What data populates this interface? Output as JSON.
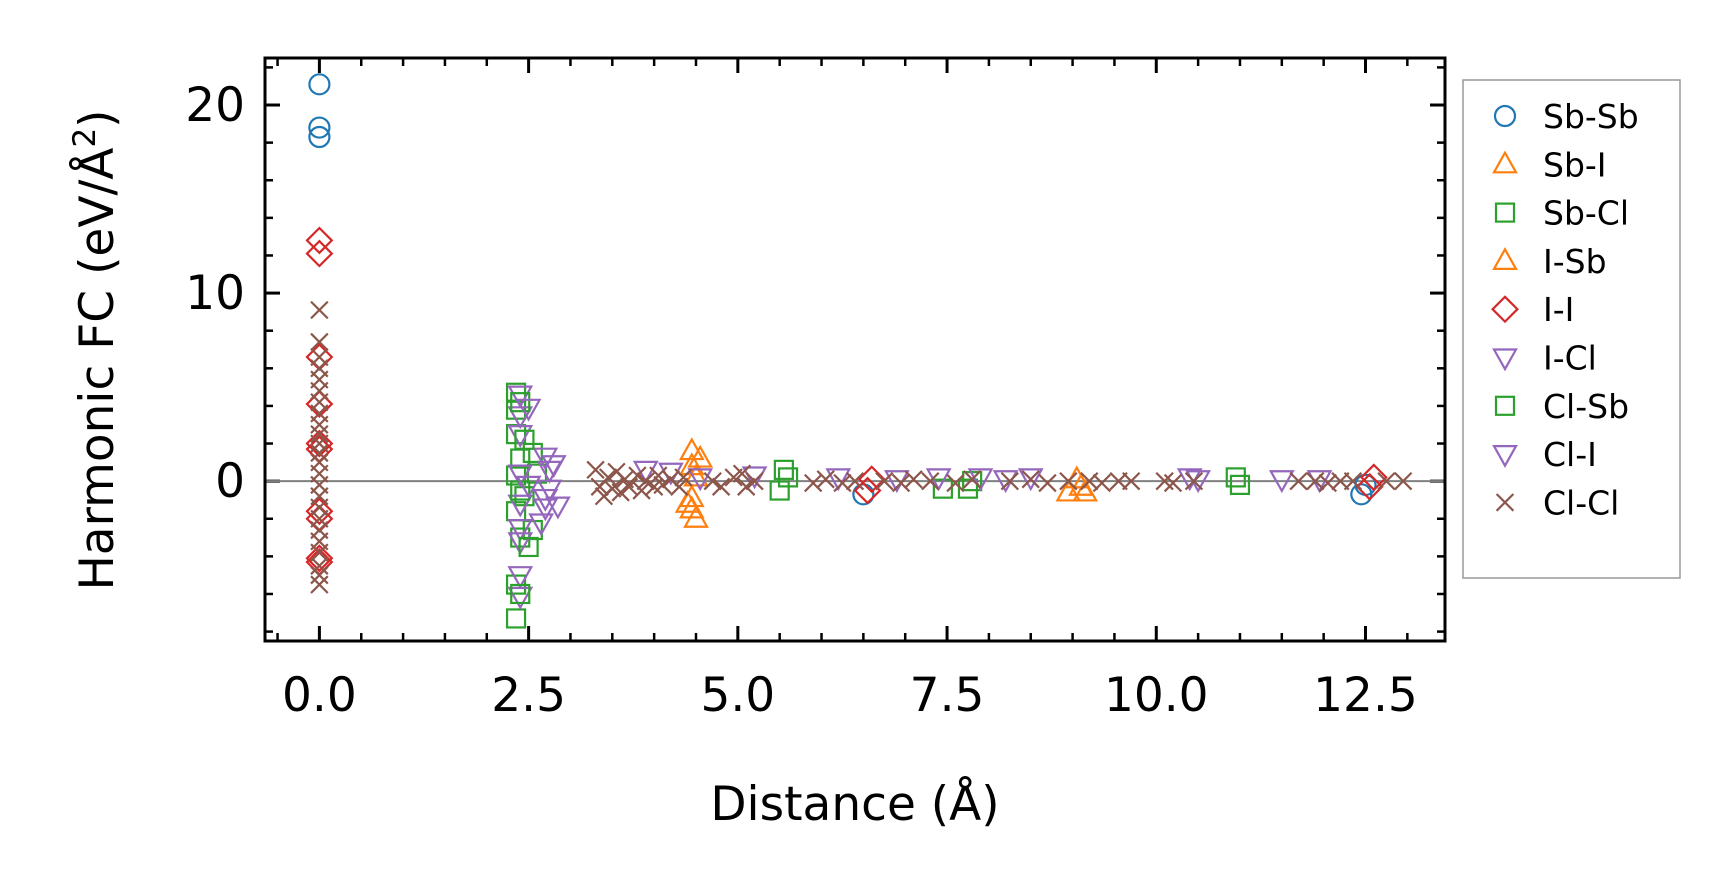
{
  "chart_data": {
    "type": "scatter",
    "title": "",
    "xlabel": "Distance (Å)",
    "ylabel_main": "Harmonic FC (eV/Å",
    "ylabel_sup": "2",
    "ylabel_close": ")",
    "xlim": [
      -0.65,
      13.45
    ],
    "ylim": [
      -8.5,
      22.5
    ],
    "xticks": [
      0.0,
      2.5,
      5.0,
      7.5,
      10.0,
      12.5
    ],
    "xtick_labels": [
      "0.0",
      "2.5",
      "5.0",
      "7.5",
      "10.0",
      "12.5"
    ],
    "yticks": [
      0,
      10,
      20
    ],
    "ytick_labels": [
      "0",
      "10",
      "20"
    ],
    "zero_line": true,
    "grid": false,
    "legend_position": "right",
    "series": [
      {
        "name": "Sb-Sb",
        "marker": "circle",
        "color": "#1f77b4",
        "points": [
          [
            0.0,
            21.1
          ],
          [
            0.0,
            18.8
          ],
          [
            0.0,
            18.3
          ],
          [
            6.5,
            -0.7
          ],
          [
            12.45,
            -0.7
          ],
          [
            12.5,
            -0.2
          ]
        ]
      },
      {
        "name": "Sb-I",
        "marker": "triangle-up",
        "color": "#ff7f0e",
        "points": [
          [
            4.45,
            1.6
          ],
          [
            4.45,
            0.8
          ],
          [
            4.5,
            0.2
          ],
          [
            4.45,
            -0.9
          ],
          [
            4.45,
            -1.5
          ],
          [
            4.5,
            -2.0
          ],
          [
            8.95,
            -0.6
          ],
          [
            9.15,
            -0.6
          ],
          [
            9.05,
            0.1
          ]
        ]
      },
      {
        "name": "Sb-Cl",
        "marker": "square",
        "color": "#2ca02c",
        "points": [
          [
            2.35,
            4.7
          ],
          [
            2.35,
            3.8
          ],
          [
            2.35,
            2.5
          ],
          [
            2.4,
            1.2
          ],
          [
            2.35,
            0.3
          ],
          [
            2.45,
            -0.8
          ],
          [
            2.35,
            -1.6
          ],
          [
            2.4,
            -3.0
          ],
          [
            2.35,
            -5.5
          ],
          [
            2.35,
            -7.3
          ],
          [
            2.55,
            1.5
          ],
          [
            2.55,
            -2.6
          ],
          [
            2.6,
            0.4
          ],
          [
            5.5,
            -0.5
          ],
          [
            5.55,
            0.6
          ],
          [
            7.45,
            -0.4
          ],
          [
            7.75,
            -0.4
          ],
          [
            11.0,
            -0.2
          ]
        ]
      },
      {
        "name": "I-Sb",
        "marker": "triangle-up",
        "color": "#ff7f0e",
        "points": [
          [
            4.55,
            1.2
          ],
          [
            4.4,
            -1.2
          ],
          [
            9.1,
            -0.3
          ]
        ]
      },
      {
        "name": "I-I",
        "marker": "diamond",
        "color": "#d62728",
        "points": [
          [
            0.0,
            12.8
          ],
          [
            0.0,
            12.1
          ],
          [
            0.0,
            6.6
          ],
          [
            0.0,
            4.1
          ],
          [
            0.0,
            2.0
          ],
          [
            0.0,
            1.7
          ],
          [
            0.0,
            -1.6
          ],
          [
            0.0,
            -2.0
          ],
          [
            0.0,
            -4.1
          ],
          [
            0.0,
            -4.3
          ],
          [
            6.55,
            -0.5
          ],
          [
            6.6,
            0.1
          ],
          [
            12.55,
            -0.3
          ],
          [
            12.6,
            0.2
          ]
        ]
      },
      {
        "name": "I-Cl",
        "marker": "triangle-down",
        "color": "#9467bd",
        "points": [
          [
            2.4,
            4.6
          ],
          [
            2.4,
            3.5
          ],
          [
            2.4,
            2.5
          ],
          [
            2.4,
            0.4
          ],
          [
            2.4,
            -1.2
          ],
          [
            2.4,
            -2.5
          ],
          [
            2.4,
            -3.2
          ],
          [
            2.4,
            -5.0
          ],
          [
            2.4,
            -6.1
          ],
          [
            2.7,
            1.3
          ],
          [
            2.75,
            0.6
          ],
          [
            2.8,
            0.9
          ],
          [
            2.75,
            -0.4
          ],
          [
            2.7,
            -0.9
          ],
          [
            2.7,
            -1.4
          ],
          [
            2.85,
            -1.3
          ]
        ]
      },
      {
        "name": "Cl-Sb",
        "marker": "square",
        "color": "#2ca02c",
        "points": [
          [
            2.4,
            4.2
          ],
          [
            2.45,
            2.2
          ],
          [
            2.4,
            -0.5
          ],
          [
            2.5,
            -3.5
          ],
          [
            2.4,
            -6.0
          ],
          [
            5.6,
            0.2
          ],
          [
            7.8,
            0.0
          ],
          [
            10.95,
            0.2
          ]
        ]
      },
      {
        "name": "Cl-I",
        "marker": "triangle-down",
        "color": "#9467bd",
        "points": [
          [
            2.5,
            3.9
          ],
          [
            2.5,
            -0.2
          ],
          [
            2.65,
            -2.2
          ],
          [
            3.9,
            0.6
          ],
          [
            4.2,
            0.5
          ],
          [
            4.55,
            0.2
          ],
          [
            5.2,
            0.3
          ],
          [
            6.2,
            0.2
          ],
          [
            6.9,
            0.1
          ],
          [
            7.4,
            0.2
          ],
          [
            7.9,
            0.2
          ],
          [
            8.2,
            0.1
          ],
          [
            8.5,
            0.2
          ],
          [
            10.4,
            0.2
          ],
          [
            10.5,
            0.1
          ],
          [
            11.5,
            0.1
          ],
          [
            11.95,
            0.1
          ]
        ]
      },
      {
        "name": "Cl-Cl",
        "marker": "x",
        "color": "#8c564b",
        "points": [
          [
            0.0,
            9.1
          ],
          [
            0.0,
            7.4
          ],
          [
            0.0,
            6.6
          ],
          [
            0.0,
            6.0
          ],
          [
            0.0,
            5.4
          ],
          [
            0.0,
            4.8
          ],
          [
            0.0,
            4.2
          ],
          [
            0.0,
            3.6
          ],
          [
            0.0,
            3.0
          ],
          [
            0.0,
            2.5
          ],
          [
            0.0,
            2.0
          ],
          [
            0.0,
            1.5
          ],
          [
            0.0,
            1.0
          ],
          [
            0.0,
            0.4
          ],
          [
            0.0,
            -0.2
          ],
          [
            0.0,
            -0.8
          ],
          [
            0.0,
            -1.4
          ],
          [
            0.0,
            -2.0
          ],
          [
            0.0,
            -2.6
          ],
          [
            0.0,
            -3.2
          ],
          [
            0.0,
            -3.8
          ],
          [
            0.0,
            -4.5
          ],
          [
            0.0,
            -5.0
          ],
          [
            0.0,
            -5.5
          ],
          [
            3.3,
            0.6
          ],
          [
            3.35,
            -0.3
          ],
          [
            3.4,
            -0.8
          ],
          [
            3.45,
            0.2
          ],
          [
            3.5,
            -0.4
          ],
          [
            3.55,
            0.5
          ],
          [
            3.6,
            -0.6
          ],
          [
            3.65,
            0.1
          ],
          [
            3.7,
            -0.3
          ],
          [
            3.8,
            0.3
          ],
          [
            3.85,
            -0.5
          ],
          [
            3.9,
            0.0
          ],
          [
            4.0,
            -0.3
          ],
          [
            4.05,
            0.3
          ],
          [
            4.1,
            -0.2
          ],
          [
            4.2,
            0.1
          ],
          [
            4.3,
            -0.3
          ],
          [
            4.35,
            0.2
          ],
          [
            4.7,
            0.0
          ],
          [
            4.8,
            -0.3
          ],
          [
            4.95,
            0.2
          ],
          [
            5.05,
            0.4
          ],
          [
            5.1,
            -0.3
          ],
          [
            5.2,
            0.0
          ],
          [
            5.9,
            -0.1
          ],
          [
            6.05,
            0.1
          ],
          [
            6.25,
            -0.1
          ],
          [
            6.4,
            0.0
          ],
          [
            6.75,
            0.0
          ],
          [
            6.95,
            -0.1
          ],
          [
            7.1,
            0.1
          ],
          [
            7.3,
            0.0
          ],
          [
            7.6,
            -0.1
          ],
          [
            7.8,
            0.1
          ],
          [
            8.25,
            0.0
          ],
          [
            8.5,
            0.1
          ],
          [
            8.7,
            -0.1
          ],
          [
            8.95,
            0.0
          ],
          [
            9.2,
            0.0
          ],
          [
            9.35,
            -0.1
          ],
          [
            9.55,
            0.0
          ],
          [
            9.7,
            0.0
          ],
          [
            10.1,
            0.0
          ],
          [
            10.2,
            -0.1
          ],
          [
            10.45,
            0.0
          ],
          [
            11.7,
            0.0
          ],
          [
            11.9,
            0.0
          ],
          [
            12.05,
            -0.1
          ],
          [
            12.2,
            0.0
          ],
          [
            12.35,
            0.0
          ],
          [
            12.75,
            0.0
          ],
          [
            12.95,
            0.0
          ]
        ]
      }
    ]
  }
}
